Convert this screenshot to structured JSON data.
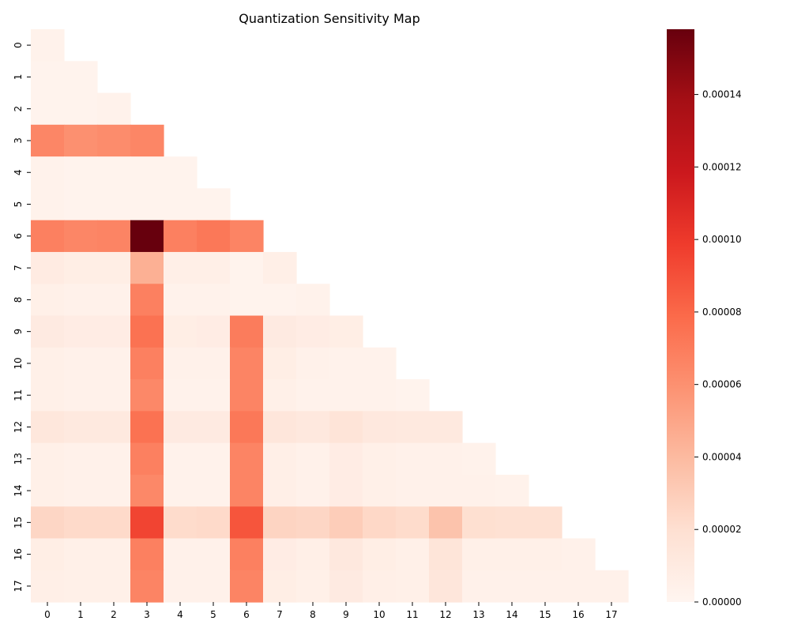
{
  "chart_data": {
    "type": "heatmap",
    "title": "Quantization Sensitivity Map",
    "xlabel": "",
    "ylabel": "",
    "x_categories": [
      "0",
      "1",
      "2",
      "3",
      "4",
      "5",
      "6",
      "7",
      "8",
      "9",
      "10",
      "11",
      "12",
      "13",
      "14",
      "15",
      "16",
      "17"
    ],
    "y_categories": [
      "0",
      "1",
      "2",
      "3",
      "4",
      "5",
      "6",
      "7",
      "8",
      "9",
      "10",
      "11",
      "12",
      "13",
      "14",
      "15",
      "16",
      "17"
    ],
    "mask": "upper-triangle",
    "colormap": "Reds",
    "colorbar": {
      "min": 0,
      "max": 0.000158,
      "ticks": [
        0,
        2e-05,
        4e-05,
        6e-05,
        8e-05,
        0.0001,
        0.00012,
        0.00014
      ],
      "tick_labels": [
        "0.00000",
        "0.00002",
        "0.00004",
        "0.00006",
        "0.00008",
        "0.00010",
        "0.00012",
        "0.00014"
      ]
    },
    "values": [
      [
        3e-06
      ],
      [
        2e-06,
        2e-06
      ],
      [
        2e-06,
        2e-06,
        3e-06
      ],
      [
        6.5e-05,
        6e-05,
        6.2e-05,
        6.5e-05
      ],
      [
        3e-06,
        2e-06,
        2e-06,
        2e-06,
        2e-06
      ],
      [
        3e-06,
        2e-06,
        2e-06,
        2e-06,
        2e-06,
        2e-06
      ],
      [
        6.8e-05,
        6.5e-05,
        6.6e-05,
        0.000158,
        6.8e-05,
        7.2e-05,
        6.6e-05
      ],
      [
        9e-06,
        7e-06,
        7e-06,
        4.5e-05,
        6e-06,
        6e-06,
        2e-06,
        6e-06
      ],
      [
        5e-06,
        4e-06,
        4e-06,
        6.8e-05,
        3e-06,
        3e-06,
        2e-06,
        2e-06,
        3e-06
      ],
      [
        1e-05,
        8e-06,
        8e-06,
        7.5e-05,
        7e-06,
        8e-06,
        7e-05,
        1e-05,
        8e-06,
        7e-06
      ],
      [
        5e-06,
        4e-06,
        4e-06,
        6.8e-05,
        4e-06,
        4e-06,
        6.6e-05,
        7e-06,
        4e-06,
        3e-06,
        3e-06
      ],
      [
        5e-06,
        4e-06,
        4e-06,
        6.4e-05,
        3e-06,
        3e-06,
        6.6e-05,
        5e-06,
        3e-06,
        3e-06,
        3e-06,
        2e-06
      ],
      [
        1.3e-05,
        1.1e-05,
        1.1e-05,
        7.5e-05,
        1e-05,
        1e-05,
        7.2e-05,
        1.4e-05,
        1.2e-05,
        1.6e-05,
        1.2e-05,
        1.1e-05,
        1.1e-05
      ],
      [
        5e-06,
        4e-06,
        4e-06,
        6.8e-05,
        3e-06,
        3e-06,
        6.6e-05,
        6e-06,
        4e-06,
        8e-06,
        5e-06,
        4e-06,
        4e-06,
        3e-06
      ],
      [
        5e-06,
        4e-06,
        4e-06,
        6.4e-05,
        3e-06,
        3e-06,
        6.6e-05,
        6e-06,
        4e-06,
        8e-06,
        5e-06,
        4e-06,
        4e-06,
        4e-06,
        3e-06
      ],
      [
        2.5e-05,
        2.3e-05,
        2.3e-05,
        9.5e-05,
        2.2e-05,
        2.3e-05,
        8.8e-05,
        2.6e-05,
        2.5e-05,
        3e-05,
        2.4e-05,
        2.2e-05,
        3.5e-05,
        2e-05,
        1.9e-05,
        1.9e-05
      ],
      [
        7e-06,
        5e-06,
        5e-06,
        6.8e-05,
        4e-06,
        4e-06,
        6.8e-05,
        8e-06,
        6e-06,
        1.2e-05,
        7e-06,
        5e-06,
        1.5e-05,
        5e-06,
        5e-06,
        5e-06,
        4e-06
      ],
      [
        6e-06,
        5e-06,
        5e-06,
        6.6e-05,
        4e-06,
        4e-06,
        6.6e-05,
        7e-06,
        5e-06,
        1e-05,
        6e-06,
        5e-06,
        1.4e-05,
        4e-06,
        4e-06,
        4e-06,
        4e-06,
        4e-06
      ]
    ]
  }
}
